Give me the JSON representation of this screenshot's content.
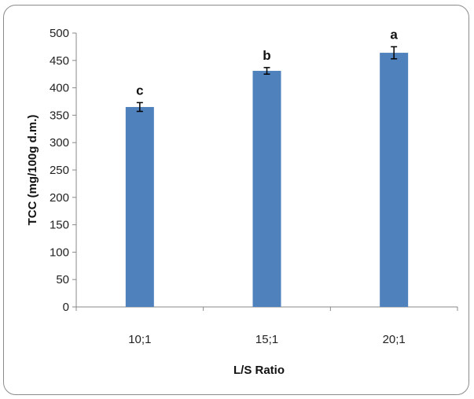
{
  "chart_data": {
    "type": "bar",
    "categories": [
      "10;1",
      "15;1",
      "20;1"
    ],
    "values": [
      365,
      431,
      464
    ],
    "errors": [
      8,
      6,
      11
    ],
    "significance_letters": [
      "c",
      "b",
      "a"
    ],
    "xlabel": "L/S Ratio",
    "ylabel": "TCC (mg/100g d.m.)",
    "ylim": [
      0,
      500
    ],
    "yticks": [
      0,
      50,
      100,
      150,
      200,
      250,
      300,
      350,
      400,
      450,
      500
    ],
    "bar_color": "#4F81BD",
    "grid": false,
    "legend": "none"
  }
}
